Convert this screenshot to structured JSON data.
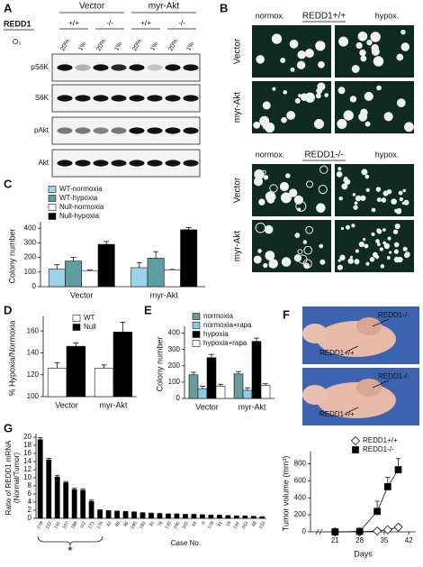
{
  "panel_a": {
    "panel": "A",
    "groups": [
      "Vector",
      "myr-Akt"
    ],
    "genotype_label": "REDD1",
    "genotypes": [
      "+/+",
      "-/-",
      "+/+",
      "-/-"
    ],
    "oxygen_label": "O₂",
    "oxygen": [
      "20%",
      "1%",
      "20%",
      "1%",
      "20%",
      "1%",
      "20%",
      "1%"
    ],
    "blots": [
      "pS6K",
      "S6K",
      "pAkt",
      "Akt"
    ]
  },
  "panel_b": {
    "panel": "B",
    "blocks": [
      {
        "left": "normox.",
        "title": "REDD1+/+",
        "right": "hypox.",
        "rows": [
          "Vector",
          "myr-Akt"
        ]
      },
      {
        "left": "normox.",
        "title": "REDD1-/-",
        "right": "hypox.",
        "rows": [
          "Vector",
          "myr-Akt"
        ]
      }
    ]
  },
  "panel_f": {
    "panel": "F",
    "photos": [
      {
        "labels": [
          "REDD1-/-",
          "REDD1+/+"
        ]
      },
      {
        "labels": [
          "REDD1-/-",
          "REDD1+/+"
        ]
      }
    ]
  },
  "chart_data": [
    {
      "panel": "C",
      "type": "bar",
      "ylabel": "Colony number",
      "categories": [
        "Vector",
        "myr-Akt"
      ],
      "ylim": [
        0,
        420
      ],
      "yticks": [
        0,
        100,
        200,
        300,
        400
      ],
      "legend": "upper-left",
      "series": [
        {
          "name": "WT-normoxia",
          "color": "#9dd3ea",
          "values": [
            120,
            130
          ],
          "errors": [
            30,
            35
          ]
        },
        {
          "name": "WT-hypoxia",
          "color": "#5f9ea0",
          "values": [
            175,
            195
          ],
          "errors": [
            25,
            45
          ]
        },
        {
          "name": "Null-normoxia",
          "color": "#ffffff",
          "values": [
            110,
            115
          ],
          "errors": [
            5,
            3
          ]
        },
        {
          "name": "Null-hypoxia",
          "color": "#000000",
          "values": [
            290,
            390
          ],
          "errors": [
            20,
            15
          ]
        }
      ]
    },
    {
      "panel": "D",
      "type": "bar",
      "ylabel": "% Hypoxia/Normoxia",
      "categories": [
        "Vector",
        "myr-Akt"
      ],
      "ylim": [
        100,
        170
      ],
      "yticks": [
        100,
        120,
        140,
        160
      ],
      "legend": "upper-right",
      "series": [
        {
          "name": "WT",
          "color": "#ffffff",
          "values": [
            126,
            126
          ],
          "errors": [
            5,
            3
          ]
        },
        {
          "name": "Null",
          "color": "#000000",
          "values": [
            146,
            159
          ],
          "errors": [
            3,
            9
          ]
        }
      ]
    },
    {
      "panel": "E",
      "type": "bar",
      "ylabel": "Colony number",
      "categories": [
        "Vector",
        "myr-Akt"
      ],
      "ylim": [
        0,
        420
      ],
      "yticks": [
        0,
        100,
        200,
        300,
        400
      ],
      "legend": "upper-left",
      "series": [
        {
          "name": "normoxia",
          "color": "#6a9a9a",
          "values": [
            145,
            150
          ],
          "errors": [
            15,
            15
          ]
        },
        {
          "name": "normoxia+rapa",
          "color": "#8ccbe6",
          "values": [
            60,
            50
          ],
          "errors": [
            15,
            15
          ]
        },
        {
          "name": "hypoxia",
          "color": "#000000",
          "values": [
            250,
            350
          ],
          "errors": [
            20,
            20
          ]
        },
        {
          "name": "hypoxia+rapa",
          "color": "#ffffff",
          "values": [
            75,
            80
          ],
          "errors": [
            12,
            10
          ]
        }
      ]
    },
    {
      "panel": "G",
      "type": "bar",
      "ylabel": [
        "Ratio of REDD1 mRNA",
        "(Normal/Tumor)"
      ],
      "xlabel": "Case No.",
      "annotation": "*",
      "ylim": [
        0,
        20
      ],
      "yticks": [
        0,
        2,
        4,
        6,
        8,
        10,
        12,
        14,
        16,
        18,
        20
      ],
      "categories": [
        "178",
        "122",
        "131",
        "107",
        "189",
        "112",
        "173",
        "176",
        "43",
        "68",
        "96",
        "195",
        "183",
        "30",
        "79",
        "130",
        "190",
        "102",
        "44",
        "6",
        "178",
        "41",
        "19",
        "134",
        "163",
        "48",
        "133"
      ],
      "series": [
        {
          "color": "#000000",
          "values": [
            19.4,
            14.4,
            10.2,
            8.8,
            7.1,
            6.9,
            4.2,
            2.0,
            1.8,
            1.7,
            1.6,
            1.5,
            1.3,
            1.2,
            1.1,
            1.0,
            1.0,
            0.9,
            0.9,
            0.8,
            0.7,
            0.7,
            0.6,
            0.5,
            0.5,
            0.4,
            0.3
          ],
          "errors": [
            0.5,
            0.4,
            0.4,
            0.3,
            0.3,
            0.3,
            0.3,
            0.1,
            0.1,
            0.1,
            0.1,
            0.1,
            0.1,
            0.1,
            0.1,
            0.1,
            0.1,
            0.1,
            0.1,
            0.1,
            0.1,
            0.1,
            0.1,
            0.1,
            0.1,
            0.1,
            0.1
          ]
        }
      ]
    },
    {
      "type": "line",
      "ylabel": "Tumor volume (mm³)",
      "xlabel": "Days",
      "x": [
        21,
        28,
        33,
        36,
        39
      ],
      "xlim": [
        14,
        44
      ],
      "xticks": [
        21,
        28,
        35,
        42
      ],
      "ylim": [
        0,
        900
      ],
      "yticks": [
        0,
        200,
        400,
        600,
        800
      ],
      "legend": "upper-right",
      "series": [
        {
          "name": "REDD1+/+",
          "color": "#ffffff",
          "marker": "diamond",
          "values": [
            0,
            0,
            10,
            25,
            55
          ],
          "errors": [
            0,
            0,
            5,
            10,
            25
          ]
        },
        {
          "name": "REDD1-/-",
          "color": "#000000",
          "marker": "square",
          "values": [
            0,
            5,
            240,
            530,
            730
          ],
          "errors": [
            0,
            0,
            120,
            110,
            130
          ]
        }
      ]
    }
  ]
}
